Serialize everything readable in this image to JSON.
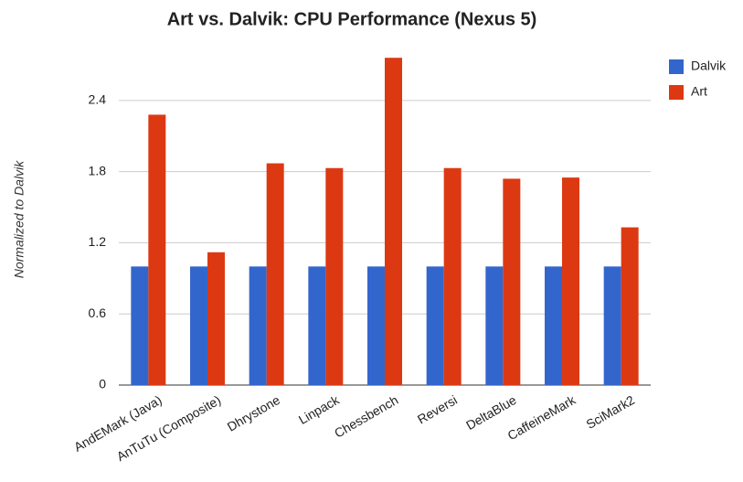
{
  "chart_data": {
    "type": "bar",
    "title": "Art vs. Dalvik: CPU Performance (Nexus 5)",
    "y_label": "Normalized to Dalvik",
    "categories": [
      "AndEMark (Java)",
      "AnTuTu (Composite)",
      "Dhrystone",
      "Linpack",
      "Chessbench",
      "Reversi",
      "DeltaBlue",
      "CaffeineMark",
      "SciMark2"
    ],
    "series": [
      {
        "name": "Dalvik",
        "color": "#3366cc",
        "values": [
          1,
          1,
          1,
          1,
          1,
          1,
          1,
          1,
          1
        ]
      },
      {
        "name": "Art",
        "color": "#dc3912",
        "values": [
          2.28,
          1.12,
          1.87,
          1.83,
          2.76,
          1.83,
          1.74,
          1.75,
          1.33
        ]
      }
    ],
    "ylim": [
      0,
      2.8
    ],
    "yticks": [
      0,
      0.6,
      1.2,
      1.8,
      2.4
    ],
    "grid": true,
    "legend": "right"
  }
}
